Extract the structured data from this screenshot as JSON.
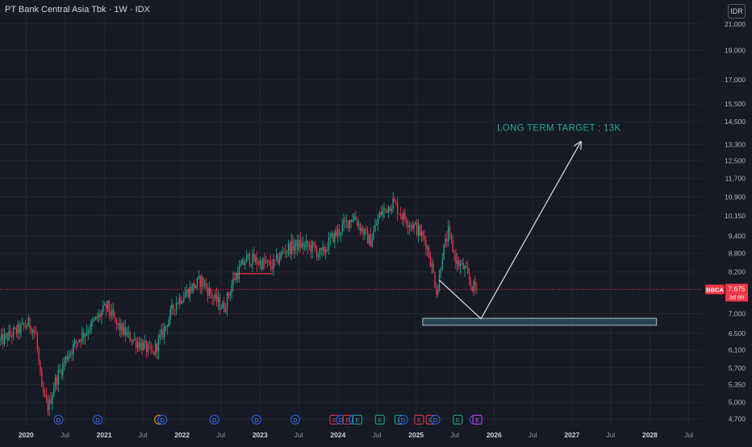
{
  "header": {
    "title": "PT Bank Central Asia Tbk · 1W · IDX"
  },
  "currency_button": {
    "label": "IDR"
  },
  "colors": {
    "background": "#161a25",
    "grid": "#232734",
    "up": "#22ab94",
    "down": "#f23645",
    "annotation": "#d1d4dc",
    "target_text": "#26a69a",
    "price_badge": "#f23645",
    "support_zone": "#2b4c5a"
  },
  "chart_data": {
    "type": "candlestick",
    "symbol": "BBCA",
    "scale": "log",
    "ylim": [
      4600,
      23000
    ],
    "y_ticks": [
      21000,
      19000,
      17000,
      15500,
      14500,
      13300,
      12500,
      11700,
      10900,
      10150,
      9400,
      8800,
      8200,
      7675,
      7000,
      6500,
      6100,
      5700,
      5350,
      5000,
      4700
    ],
    "y_tick_labels": [
      "21,000",
      "19,000",
      "17,000",
      "15,500",
      "14,500",
      "13,300",
      "12,500",
      "11,700",
      "10,900",
      "10,150",
      "9,400",
      "8,800",
      "8,200",
      "7,675",
      "7,000",
      "6,500",
      "6,100",
      "5,700",
      "5,350",
      "5,000",
      "4,700"
    ],
    "x_range": [
      "2019-09-01",
      "2028-09-01"
    ],
    "x_ticks": [
      {
        "date": "2020-01-01",
        "label": "2020",
        "bold": true
      },
      {
        "date": "2020-07-01",
        "label": "Jul",
        "bold": false
      },
      {
        "date": "2021-01-01",
        "label": "2021",
        "bold": true
      },
      {
        "date": "2021-07-01",
        "label": "Jul",
        "bold": false
      },
      {
        "date": "2022-01-01",
        "label": "2022",
        "bold": true
      },
      {
        "date": "2022-07-01",
        "label": "Jul",
        "bold": false
      },
      {
        "date": "2023-01-01",
        "label": "2023",
        "bold": true
      },
      {
        "date": "2023-07-01",
        "label": "Jul",
        "bold": false
      },
      {
        "date": "2024-01-01",
        "label": "2024",
        "bold": true
      },
      {
        "date": "2024-07-01",
        "label": "Jul",
        "bold": false
      },
      {
        "date": "2025-01-01",
        "label": "2025",
        "bold": true
      },
      {
        "date": "2025-07-01",
        "label": "Jul",
        "bold": false
      },
      {
        "date": "2026-01-01",
        "label": "2026",
        "bold": true
      },
      {
        "date": "2026-07-01",
        "label": "Jul",
        "bold": false
      },
      {
        "date": "2027-01-01",
        "label": "2027",
        "bold": true
      },
      {
        "date": "2027-07-01",
        "label": "Jul",
        "bold": false
      },
      {
        "date": "2028-01-01",
        "label": "2028",
        "bold": true
      },
      {
        "date": "2028-07-01",
        "label": "Jul",
        "bold": false
      }
    ],
    "price_path": [
      [
        "2019-09-01",
        6300
      ],
      [
        "2019-11-01",
        6500
      ],
      [
        "2020-01-15",
        6750
      ],
      [
        "2020-02-15",
        6500
      ],
      [
        "2020-03-15",
        5200
      ],
      [
        "2020-04-15",
        4900
      ],
      [
        "2020-05-15",
        5400
      ],
      [
        "2020-07-15",
        6000
      ],
      [
        "2020-09-01",
        6350
      ],
      [
        "2020-11-01",
        6700
      ],
      [
        "2021-01-15",
        7200
      ],
      [
        "2021-03-01",
        6700
      ],
      [
        "2021-05-01",
        6400
      ],
      [
        "2021-07-01",
        6200
      ],
      [
        "2021-08-15",
        6000
      ],
      [
        "2021-10-01",
        6500
      ],
      [
        "2021-12-01",
        7300
      ],
      [
        "2022-02-01",
        7650
      ],
      [
        "2022-04-01",
        7950
      ],
      [
        "2022-06-01",
        7400
      ],
      [
        "2022-07-15",
        7150
      ],
      [
        "2022-09-01",
        8000
      ],
      [
        "2022-11-01",
        8650
      ],
      [
        "2023-01-01",
        8500
      ],
      [
        "2023-03-01",
        8400
      ],
      [
        "2023-05-01",
        8950
      ],
      [
        "2023-07-01",
        9100
      ],
      [
        "2023-09-01",
        9000
      ],
      [
        "2023-10-15",
        8750
      ],
      [
        "2023-12-01",
        9300
      ],
      [
        "2024-02-01",
        9800
      ],
      [
        "2024-03-15",
        10150
      ],
      [
        "2024-05-01",
        9500
      ],
      [
        "2024-06-01",
        9200
      ],
      [
        "2024-07-15",
        10200
      ],
      [
        "2024-09-15",
        10700
      ],
      [
        "2024-11-01",
        10100
      ],
      [
        "2025-01-01",
        9700
      ],
      [
        "2025-02-15",
        9200
      ],
      [
        "2025-03-15",
        8400
      ],
      [
        "2025-04-10",
        7550
      ],
      [
        "2025-05-01",
        8700
      ],
      [
        "2025-06-01",
        9500
      ],
      [
        "2025-06-20",
        9000
      ],
      [
        "2025-07-10",
        8500
      ],
      [
        "2025-08-15",
        8300
      ],
      [
        "2025-09-15",
        7800
      ],
      [
        "2025-10-15",
        7675
      ]
    ],
    "current_price": {
      "value": 7675,
      "label": "7,675",
      "ticker_label": "BBCA",
      "countdown": "3d 6h"
    },
    "support_zone": {
      "start": "2025-02-01",
      "end": "2028-02-01",
      "low": 6700,
      "high": 6880
    },
    "resistance_level": {
      "start": "2022-09-01",
      "end": "2023-03-01",
      "value": 8150
    },
    "projection": {
      "points": [
        [
          "2025-04-20",
          7950
        ],
        [
          "2025-11-01",
          6870
        ],
        [
          "2027-02-10",
          13400
        ]
      ],
      "label": "LONG TERM TARGET : 13K",
      "label_date": "2026-11-01",
      "label_value": 14000
    },
    "events": [
      {
        "date": "2020-06-01",
        "label": "D",
        "kind": "dividend"
      },
      {
        "date": "2020-12-01",
        "label": "D",
        "kind": "dividend"
      },
      {
        "date": "2021-09-15",
        "label": "S",
        "kind": "split"
      },
      {
        "date": "2021-10-01",
        "label": "D",
        "kind": "dividend"
      },
      {
        "date": "2022-06-01",
        "label": "D",
        "kind": "dividend"
      },
      {
        "date": "2022-12-15",
        "label": "D",
        "kind": "dividend"
      },
      {
        "date": "2023-06-15",
        "label": "D",
        "kind": "dividend"
      },
      {
        "date": "2023-12-15",
        "label": "E",
        "kind": "earnings-miss"
      },
      {
        "date": "2024-01-15",
        "label": "D",
        "kind": "dividend"
      },
      {
        "date": "2024-02-15",
        "label": "E",
        "kind": "earnings-miss"
      },
      {
        "date": "2024-03-15",
        "label": "D",
        "kind": "dividend"
      },
      {
        "date": "2024-04-01",
        "label": "E",
        "kind": "earnings-beat"
      },
      {
        "date": "2024-07-15",
        "label": "E",
        "kind": "earnings-beat"
      },
      {
        "date": "2024-10-15",
        "label": "E",
        "kind": "earnings-beat"
      },
      {
        "date": "2024-11-01",
        "label": "D",
        "kind": "dividend"
      },
      {
        "date": "2025-01-15",
        "label": "E",
        "kind": "earnings-miss"
      },
      {
        "date": "2025-03-10",
        "label": "E",
        "kind": "earnings-miss"
      },
      {
        "date": "2025-04-01",
        "label": "D",
        "kind": "dividend"
      },
      {
        "date": "2025-07-15",
        "label": "E",
        "kind": "earnings-beat"
      },
      {
        "date": "2025-10-01",
        "label": "D",
        "kind": "dividend"
      },
      {
        "date": "2025-10-15",
        "label": "E",
        "kind": "earnings-upcoming"
      }
    ]
  }
}
